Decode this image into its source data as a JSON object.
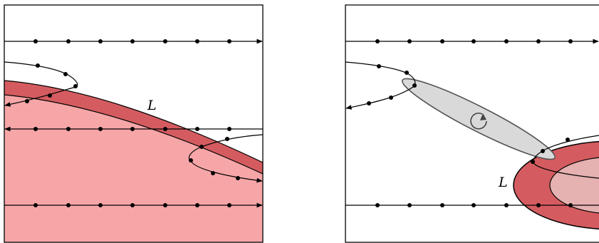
{
  "diagram": {
    "left_panel": {
      "label": "L"
    },
    "right_panel": {
      "label": "L"
    },
    "colors": {
      "light_region": "#f7a6a8",
      "dark_band": "#d45c60",
      "inner_ellipse": "#e6b1b1",
      "gray_ellipse": "#d9d9d9",
      "stroke": "#000000",
      "gray_stroke": "#555555"
    },
    "icons": [
      "rotation-arrow-icon"
    ]
  }
}
